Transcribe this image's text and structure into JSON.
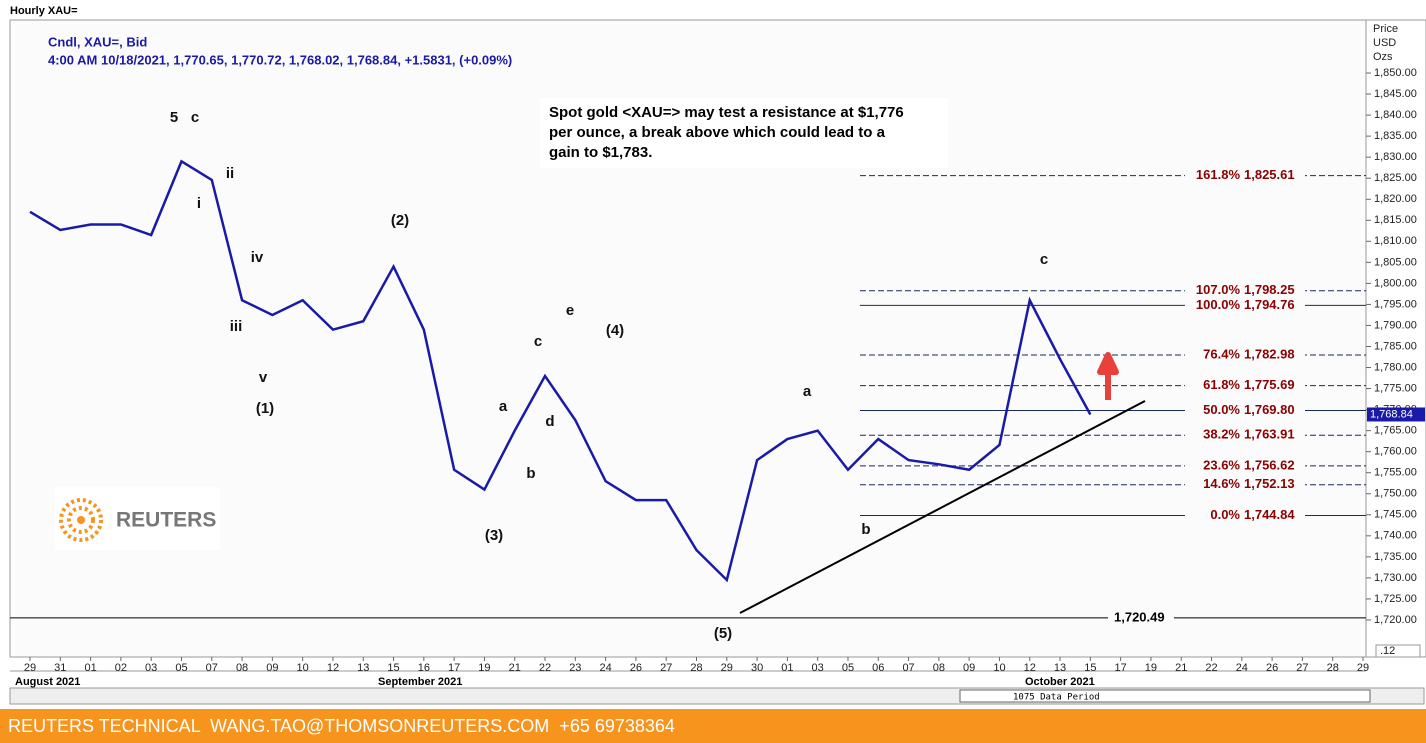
{
  "header": {
    "title": "Hourly XAU="
  },
  "chart_data": {
    "type": "line",
    "legend_lines": [
      "Cndl, XAU=, Bid",
      "4:00 AM 10/18/2021, 1,770.65, 1,770.72, 1,768.02, 1,768.84, +1.5831, (+0.09%)"
    ],
    "note": [
      "Spot gold <XAU=> may test a resistance at $1,776",
      "per ounce, a break above which could lead to a",
      "gain to $1,783."
    ],
    "logo": "REUTERS",
    "axis_title": [
      "Price",
      "USD",
      "Ozs"
    ],
    "categories": [
      "29",
      "31",
      "01",
      "02",
      "03",
      "05",
      "07",
      "08",
      "09",
      "10",
      "12",
      "13",
      "15",
      "16",
      "17",
      "19",
      "21",
      "22",
      "23",
      "24",
      "26",
      "27",
      "28",
      "29",
      "30",
      "01",
      "03",
      "05",
      "06",
      "07",
      "08",
      "09",
      "10",
      "12",
      "13",
      "15",
      "17",
      "19",
      "21",
      "22",
      "24",
      "26",
      "27",
      "28",
      "29"
    ],
    "months": [
      "August 2021",
      "September 2021",
      "October 2021"
    ],
    "series": [
      {
        "name": "XAU=",
        "color": "#1a1aa8",
        "values": [
          1817,
          1812.7,
          1814,
          1814,
          1811.5,
          1829,
          1824.6,
          1796,
          1792.5,
          1796,
          1789,
          1791,
          1804,
          1789,
          1755.7,
          1751,
          1765,
          1778,
          1767.5,
          1753,
          1748.5,
          1748.5,
          1736.6,
          1729.5,
          1758,
          1763,
          1765,
          1755.7,
          1763,
          1758,
          1757,
          1755.7,
          1761.6,
          1796,
          1782,
          1768.84,
          null,
          null,
          null,
          null,
          null,
          null,
          null,
          null,
          null
        ]
      }
    ],
    "ylim": [
      1711.2,
      1862.6
    ],
    "yticks": [
      {
        "value": 1720,
        "label": "1,720.00"
      },
      {
        "value": 1725,
        "label": "1,725.00"
      },
      {
        "value": 1730,
        "label": "1,730.00"
      },
      {
        "value": 1735,
        "label": "1,735.00"
      },
      {
        "value": 1740,
        "label": "1,740.00"
      },
      {
        "value": 1745,
        "label": "1,745.00"
      },
      {
        "value": 1750,
        "label": "1,750.00"
      },
      {
        "value": 1755,
        "label": "1,755.00"
      },
      {
        "value": 1760,
        "label": "1,760.00"
      },
      {
        "value": 1765,
        "label": "1,765.00"
      },
      {
        "value": 1770,
        "label": "1,770.00"
      },
      {
        "value": 1775,
        "label": "1,775.00"
      },
      {
        "value": 1780,
        "label": "1,780.00"
      },
      {
        "value": 1785,
        "label": "1,785.00"
      },
      {
        "value": 1790,
        "label": "1,790.00"
      },
      {
        "value": 1795,
        "label": "1,795.00"
      },
      {
        "value": 1800,
        "label": "1,800.00"
      },
      {
        "value": 1805,
        "label": "1,805.00"
      },
      {
        "value": 1810,
        "label": "1,810.00"
      },
      {
        "value": 1815,
        "label": "1,815.00"
      },
      {
        "value": 1820,
        "label": "1,820.00"
      },
      {
        "value": 1825,
        "label": "1,825.00"
      },
      {
        "value": 1830,
        "label": "1,830.00"
      },
      {
        "value": 1835,
        "label": "1,835.00"
      },
      {
        "value": 1840,
        "label": "1,840.00"
      },
      {
        "value": 1845,
        "label": "1,845.00"
      },
      {
        "value": 1850,
        "label": "1,850.00"
      }
    ],
    "fib_levels": {
      "color": "#8b0000",
      "labels": [
        "161.8%",
        "107.0%",
        "100.0%",
        "76.4%",
        "61.8%",
        "50.0%",
        "38.2%",
        "23.6%",
        "14.6%",
        "0.0%"
      ],
      "values": [
        1825.61,
        1798.25,
        1794.76,
        1782.98,
        1775.69,
        1769.8,
        1763.91,
        1756.62,
        1752.13,
        1744.84
      ],
      "value_labels": [
        "1,825.61",
        "1,798.25",
        "1,794.76",
        "1,782.98",
        "1,775.69",
        "1,769.80",
        "1,763.91",
        "1,756.62",
        "1,752.13",
        "1,744.84"
      ],
      "dashed": [
        true,
        true,
        false,
        true,
        true,
        false,
        true,
        true,
        true,
        false
      ]
    },
    "support": {
      "value": 1720.49,
      "value_label": "1,720.49"
    },
    "last_price": {
      "value": 1768.84,
      "label": "1,768.84"
    },
    "annotations": [
      "5",
      "c",
      "ii",
      "i",
      "iv",
      "iii",
      "v",
      "(1)",
      "(2)",
      "a",
      "c",
      "e",
      "(4)",
      "d",
      "b",
      "(3)",
      "(5)",
      "a",
      "b",
      "c"
    ],
    "data_period": "1075 Data Period",
    "zoom": ".12"
  },
  "footer": {
    "text": "REUTERS TECHNICAL  WANG.TAO@THOMSONREUTERS.COM  +65 69738364"
  }
}
